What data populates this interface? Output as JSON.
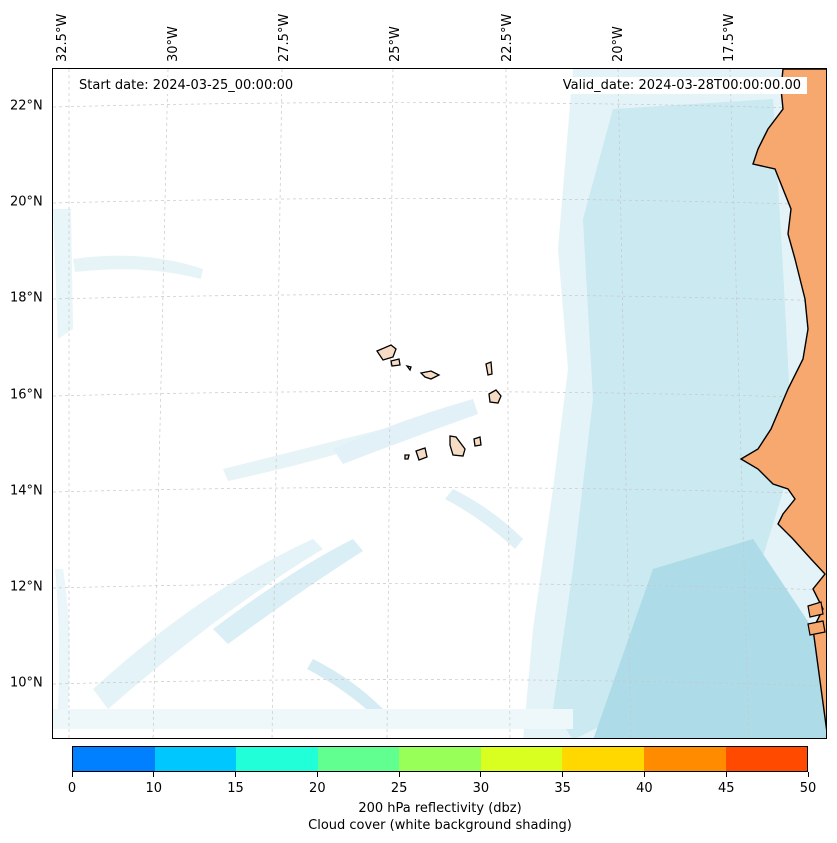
{
  "map": {
    "start_date": "Start date: 2024-03-25_00:00:00",
    "valid_date": "Valid_date: 2024-03-28T00:00:00.00",
    "longitude_labels": [
      "32.5°W",
      "30°W",
      "27.5°W",
      "25°W",
      "22.5°W",
      "20°W",
      "17.5°W"
    ],
    "latitude_labels": [
      "22°N",
      "20°N",
      "18°N",
      "16°N",
      "14°N",
      "12°N",
      "10°N"
    ],
    "colors": {
      "land": "#f6a86e",
      "coastline": "#000000",
      "cloud_light": "#e4f3f8",
      "cloud_mid": "#c6e6f0",
      "cloud_dense": "#addbe8",
      "gridline": "#c8c8c8"
    }
  },
  "colorbar": {
    "ticks": [
      "0",
      "10",
      "15",
      "20",
      "25",
      "30",
      "35",
      "40",
      "45",
      "50"
    ],
    "colors": [
      "#0080ff",
      "#00c8ff",
      "#20ffd8",
      "#60ff90",
      "#98ff58",
      "#d8ff20",
      "#ffd800",
      "#ff8c00",
      "#ff4a00"
    ],
    "label": "200 hPa reflectivity (dbz)",
    "sublabel": "Cloud cover (white background shading)"
  }
}
